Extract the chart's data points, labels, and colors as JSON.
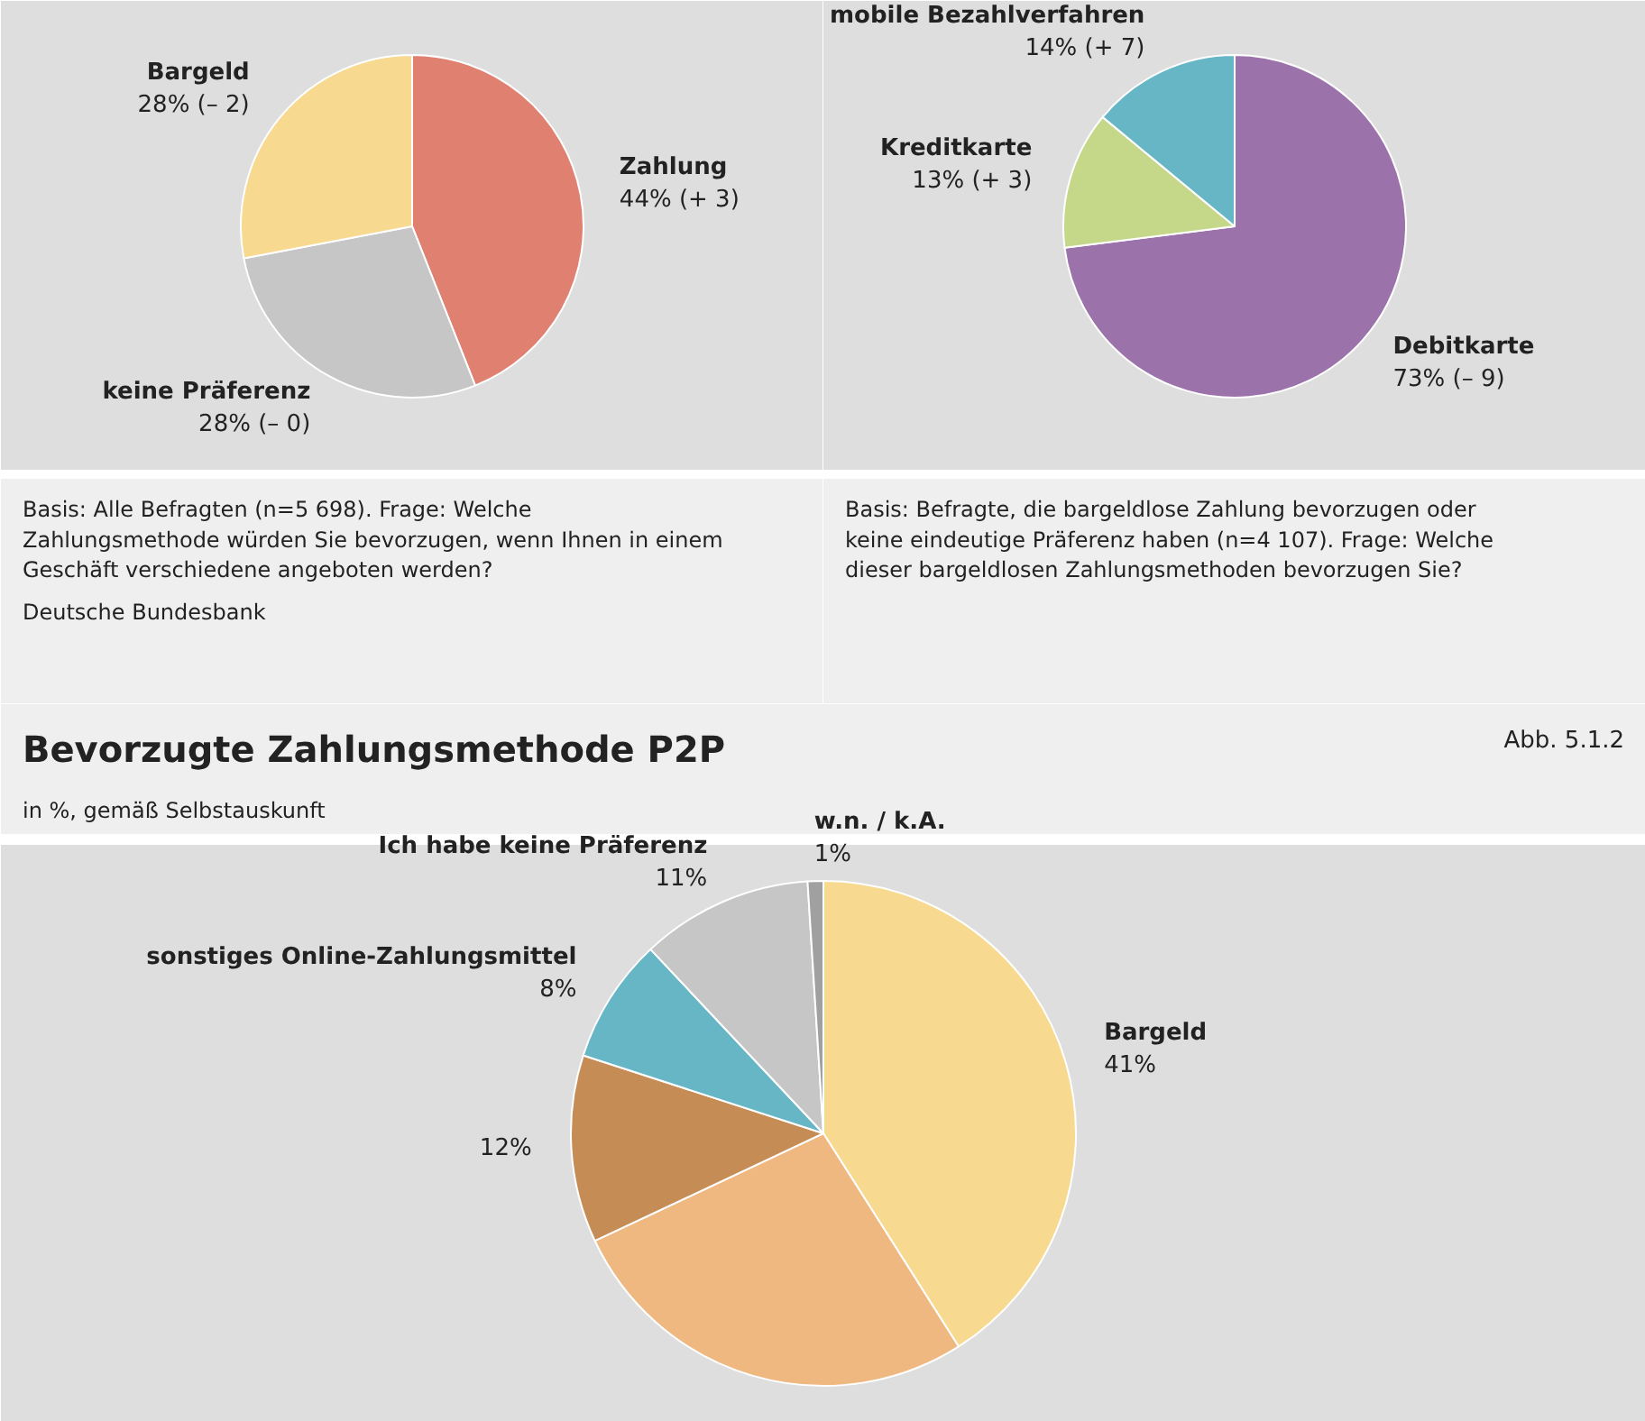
{
  "chart_data": [
    {
      "type": "pie",
      "categories": [
        "Zahlung",
        "keine Präferenz",
        "Bargeld"
      ],
      "values": [
        44,
        28,
        28
      ],
      "colors": [
        "#e08070",
        "#c6c6c6",
        "#f7d98f"
      ],
      "value_labels": [
        "44% (+ 3)",
        "28% (– 0)",
        "28% (– 2)"
      ],
      "annotations": [
        "Basis: Alle Befragten (n=5 698). Frage: Welche Zahlungsmethode würden Sie bevorzugen, wenn Ihnen in einem Geschäft verschiedene angeboten werden?",
        "Deutsche Bundesbank"
      ]
    },
    {
      "type": "pie",
      "categories": [
        "Debitkarte",
        "Kreditkarte",
        "mobile Bezahlverfahren"
      ],
      "values": [
        73,
        13,
        14
      ],
      "colors": [
        "#9b72aa",
        "#c5d88a",
        "#66b6c6"
      ],
      "value_labels": [
        "73% (– 9)",
        "13% (+ 3)",
        "14% (+ 7)"
      ],
      "annotations": [
        "Basis: Befragte, die bargeldlose Zahlung bevorzugen oder keine eindeutige Präferenz haben (n=4 107). Frage: Welche dieser bargeldlosen Zahlungsmethoden bevorzugen Sie?"
      ]
    },
    {
      "type": "pie",
      "title": "Bevorzugte Zahlungsmethode P2P",
      "subtitle": "in %, gemäß Selbstauskunft",
      "categories": [
        "Bargeld",
        null,
        null,
        "sonstiges Online-Zahlungsmittel",
        "Ich habe keine Präferenz",
        "w.n. / k.A."
      ],
      "values": [
        41,
        27,
        12,
        8,
        11,
        1
      ],
      "colors": [
        "#f7d98f",
        "#efb880",
        "#c58d55",
        "#66b6c6",
        "#c6c6c6",
        "#a0a0a0"
      ],
      "value_labels": [
        "41%",
        null,
        "12%",
        "8%",
        "11%",
        "1%"
      ],
      "annotations": [
        "Abb. 5.1.2"
      ]
    }
  ]
}
